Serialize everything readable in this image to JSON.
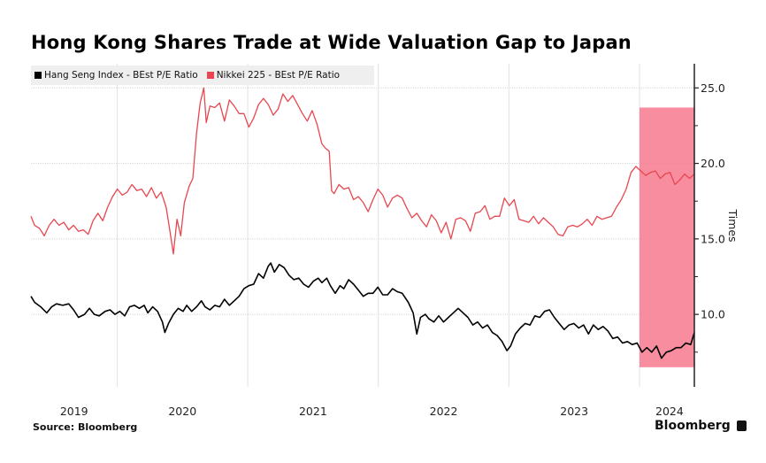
{
  "chart_data": {
    "type": "line",
    "title": "Hong Kong Shares Trade at Wide Valuation Gap to Japan",
    "xlabel": "",
    "ylabel": "Times",
    "ylim": [
      5.2,
      26.6
    ],
    "xlim": [
      2019.34,
      2024.42
    ],
    "y_ticks": [
      {
        "value": 25,
        "label": "25.0"
      },
      {
        "value": 20,
        "label": "20.0"
      },
      {
        "value": 15,
        "label": "15.0"
      },
      {
        "value": 10,
        "label": "10.0"
      }
    ],
    "y_minor_ticks": [
      22.5,
      17.5,
      12.5,
      7.5
    ],
    "x_ticks": [
      {
        "value": 2019.67,
        "label": "2019"
      },
      {
        "value": 2020.5,
        "label": "2020"
      },
      {
        "value": 2021.5,
        "label": "2021"
      },
      {
        "value": 2022.5,
        "label": "2022"
      },
      {
        "value": 2023.5,
        "label": "2023"
      },
      {
        "value": 2024.23,
        "label": "2024"
      }
    ],
    "x_gridlines": [
      2020.0,
      2021.0,
      2022.0,
      2023.0,
      2024.0
    ],
    "grid": true,
    "legend_position": "top-left",
    "highlight": {
      "x_start": 2024.0,
      "x_end": 2024.42,
      "y_start": 6.5,
      "y_end": 23.7,
      "color": "#f7798e"
    },
    "series": [
      {
        "name": "Hang Seng Index - BEst P/E Ratio",
        "color": "#000000",
        "points": [
          [
            2019.34,
            11.2
          ],
          [
            2019.37,
            10.8
          ],
          [
            2019.42,
            10.5
          ],
          [
            2019.47,
            10.1
          ],
          [
            2019.51,
            10.5
          ],
          [
            2019.55,
            10.7
          ],
          [
            2019.6,
            10.6
          ],
          [
            2019.65,
            10.7
          ],
          [
            2019.69,
            10.3
          ],
          [
            2019.73,
            9.8
          ],
          [
            2019.78,
            10.0
          ],
          [
            2019.82,
            10.4
          ],
          [
            2019.86,
            10.0
          ],
          [
            2019.9,
            9.9
          ],
          [
            2019.95,
            10.2
          ],
          [
            2019.99,
            10.3
          ],
          [
            2020.03,
            10.0
          ],
          [
            2020.07,
            10.2
          ],
          [
            2020.11,
            9.9
          ],
          [
            2020.15,
            10.5
          ],
          [
            2020.19,
            10.6
          ],
          [
            2020.23,
            10.4
          ],
          [
            2020.27,
            10.6
          ],
          [
            2020.3,
            10.1
          ],
          [
            2020.34,
            10.5
          ],
          [
            2020.38,
            10.2
          ],
          [
            2020.42,
            9.5
          ],
          [
            2020.44,
            8.8
          ],
          [
            2020.47,
            9.4
          ],
          [
            2020.51,
            10.0
          ],
          [
            2020.55,
            10.4
          ],
          [
            2020.59,
            10.2
          ],
          [
            2020.62,
            10.6
          ],
          [
            2020.66,
            10.2
          ],
          [
            2020.7,
            10.5
          ],
          [
            2020.74,
            10.9
          ],
          [
            2020.77,
            10.5
          ],
          [
            2020.81,
            10.3
          ],
          [
            2020.85,
            10.6
          ],
          [
            2020.89,
            10.5
          ],
          [
            2020.93,
            11.0
          ],
          [
            2020.97,
            10.6
          ],
          [
            2021.01,
            10.9
          ],
          [
            2021.05,
            11.2
          ],
          [
            2021.09,
            11.7
          ],
          [
            2021.13,
            11.9
          ],
          [
            2021.17,
            12.0
          ],
          [
            2021.21,
            12.7
          ],
          [
            2021.25,
            12.4
          ],
          [
            2021.29,
            13.2
          ],
          [
            2021.31,
            13.4
          ],
          [
            2021.34,
            12.8
          ],
          [
            2021.38,
            13.3
          ],
          [
            2021.42,
            13.1
          ],
          [
            2021.46,
            12.6
          ],
          [
            2021.5,
            12.3
          ],
          [
            2021.54,
            12.4
          ],
          [
            2021.58,
            12.0
          ],
          [
            2021.62,
            11.8
          ],
          [
            2021.66,
            12.2
          ],
          [
            2021.7,
            12.4
          ],
          [
            2021.73,
            12.1
          ],
          [
            2021.77,
            12.4
          ],
          [
            2021.8,
            11.9
          ],
          [
            2021.84,
            11.4
          ],
          [
            2021.88,
            11.9
          ],
          [
            2021.91,
            11.7
          ],
          [
            2021.95,
            12.3
          ],
          [
            2021.99,
            12.0
          ],
          [
            2022.03,
            11.6
          ],
          [
            2022.07,
            11.2
          ],
          [
            2022.11,
            11.4
          ],
          [
            2022.15,
            11.4
          ],
          [
            2022.19,
            11.8
          ],
          [
            2022.23,
            11.3
          ],
          [
            2022.27,
            11.3
          ],
          [
            2022.31,
            11.7
          ],
          [
            2022.35,
            11.5
          ],
          [
            2022.39,
            11.4
          ],
          [
            2022.44,
            10.8
          ],
          [
            2022.48,
            10.1
          ],
          [
            2022.51,
            8.7
          ],
          [
            2022.54,
            9.8
          ],
          [
            2022.58,
            10.0
          ],
          [
            2022.61,
            9.7
          ],
          [
            2022.65,
            9.5
          ],
          [
            2022.69,
            9.9
          ],
          [
            2022.73,
            9.5
          ],
          [
            2022.77,
            9.8
          ],
          [
            2022.81,
            10.1
          ],
          [
            2022.85,
            10.4
          ],
          [
            2022.89,
            10.1
          ],
          [
            2022.93,
            9.8
          ],
          [
            2022.97,
            9.3
          ],
          [
            2023.01,
            9.5
          ],
          [
            2023.05,
            9.1
          ],
          [
            2023.09,
            9.3
          ],
          [
            2023.13,
            8.8
          ],
          [
            2023.17,
            8.6
          ],
          [
            2023.21,
            8.2
          ],
          [
            2023.25,
            7.6
          ],
          [
            2023.28,
            7.9
          ],
          [
            2023.32,
            8.7
          ],
          [
            2023.36,
            9.1
          ],
          [
            2023.4,
            9.4
          ],
          [
            2023.44,
            9.3
          ],
          [
            2023.48,
            9.9
          ],
          [
            2023.52,
            9.8
          ],
          [
            2023.56,
            10.2
          ],
          [
            2023.6,
            10.3
          ],
          [
            2023.64,
            9.8
          ],
          [
            2023.68,
            9.4
          ],
          [
            2023.72,
            9.0
          ],
          [
            2023.76,
            9.3
          ],
          [
            2023.8,
            9.4
          ],
          [
            2023.84,
            9.1
          ],
          [
            2023.88,
            9.3
          ],
          [
            2023.92,
            8.7
          ],
          [
            2023.96,
            9.3
          ],
          [
            2024.0,
            9.0
          ],
          [
            2024.04,
            9.2
          ],
          [
            2024.08,
            8.9
          ],
          [
            2024.12,
            8.4
          ],
          [
            2024.16,
            8.5
          ],
          [
            2024.2,
            8.1
          ],
          [
            2024.24,
            8.2
          ],
          [
            2024.28,
            8.0
          ],
          [
            2024.32,
            8.1
          ],
          [
            2024.36,
            7.5
          ],
          [
            2024.4,
            7.8
          ],
          [
            2024.44,
            7.5
          ],
          [
            2024.48,
            7.9
          ],
          [
            2024.52,
            7.1
          ],
          [
            2024.56,
            7.5
          ],
          [
            2024.6,
            7.6
          ],
          [
            2024.64,
            7.8
          ],
          [
            2024.68,
            7.8
          ],
          [
            2024.72,
            8.1
          ],
          [
            2024.76,
            8.0
          ],
          [
            2024.79,
            8.8
          ]
        ]
      },
      {
        "name": "Nikkei 225 - BEst P/E Ratio",
        "color": "#e8474f",
        "points": [
          [
            2019.34,
            16.5
          ],
          [
            2019.37,
            15.9
          ],
          [
            2019.41,
            15.7
          ],
          [
            2019.45,
            15.2
          ],
          [
            2019.49,
            15.9
          ],
          [
            2019.53,
            16.3
          ],
          [
            2019.57,
            15.9
          ],
          [
            2019.61,
            16.1
          ],
          [
            2019.65,
            15.6
          ],
          [
            2019.69,
            15.9
          ],
          [
            2019.73,
            15.5
          ],
          [
            2019.77,
            15.6
          ],
          [
            2019.81,
            15.3
          ],
          [
            2019.85,
            16.2
          ],
          [
            2019.89,
            16.7
          ],
          [
            2019.93,
            16.2
          ],
          [
            2019.97,
            17.1
          ],
          [
            2020.01,
            17.8
          ],
          [
            2020.05,
            18.3
          ],
          [
            2020.09,
            17.9
          ],
          [
            2020.13,
            18.1
          ],
          [
            2020.17,
            18.6
          ],
          [
            2020.21,
            18.2
          ],
          [
            2020.25,
            18.3
          ],
          [
            2020.29,
            17.8
          ],
          [
            2020.33,
            18.4
          ],
          [
            2020.37,
            17.7
          ],
          [
            2020.41,
            18.1
          ],
          [
            2020.45,
            17.1
          ],
          [
            2020.48,
            15.6
          ],
          [
            2020.51,
            14.0
          ],
          [
            2020.54,
            16.3
          ],
          [
            2020.57,
            15.2
          ],
          [
            2020.6,
            17.4
          ],
          [
            2020.64,
            18.5
          ],
          [
            2020.67,
            19.0
          ],
          [
            2020.7,
            22.0
          ],
          [
            2020.73,
            24.0
          ],
          [
            2020.76,
            25.0
          ],
          [
            2020.78,
            22.7
          ],
          [
            2020.81,
            23.8
          ],
          [
            2020.85,
            23.7
          ],
          [
            2020.89,
            24.0
          ],
          [
            2020.93,
            22.8
          ],
          [
            2020.97,
            24.2
          ],
          [
            2021.01,
            23.8
          ],
          [
            2021.05,
            23.3
          ],
          [
            2021.09,
            23.3
          ],
          [
            2021.13,
            22.4
          ],
          [
            2021.17,
            23.0
          ],
          [
            2021.21,
            23.9
          ],
          [
            2021.25,
            24.3
          ],
          [
            2021.29,
            23.9
          ],
          [
            2021.33,
            23.2
          ],
          [
            2021.37,
            23.6
          ],
          [
            2021.41,
            24.6
          ],
          [
            2021.45,
            24.1
          ],
          [
            2021.49,
            24.5
          ],
          [
            2021.53,
            23.9
          ],
          [
            2021.57,
            23.3
          ],
          [
            2021.61,
            22.8
          ],
          [
            2021.65,
            23.5
          ],
          [
            2021.69,
            22.6
          ],
          [
            2021.73,
            21.3
          ],
          [
            2021.76,
            21.0
          ],
          [
            2021.79,
            20.8
          ],
          [
            2021.81,
            18.2
          ],
          [
            2021.83,
            18.0
          ],
          [
            2021.87,
            18.6
          ],
          [
            2021.91,
            18.3
          ],
          [
            2021.95,
            18.4
          ],
          [
            2021.99,
            17.6
          ],
          [
            2022.03,
            17.8
          ],
          [
            2022.07,
            17.4
          ],
          [
            2022.11,
            16.8
          ],
          [
            2022.15,
            17.6
          ],
          [
            2022.19,
            18.3
          ],
          [
            2022.23,
            17.9
          ],
          [
            2022.27,
            17.1
          ],
          [
            2022.31,
            17.7
          ],
          [
            2022.35,
            17.9
          ],
          [
            2022.39,
            17.7
          ],
          [
            2022.43,
            17.0
          ],
          [
            2022.47,
            16.4
          ],
          [
            2022.51,
            16.7
          ],
          [
            2022.55,
            16.2
          ],
          [
            2022.59,
            15.8
          ],
          [
            2022.63,
            16.6
          ],
          [
            2022.67,
            16.2
          ],
          [
            2022.71,
            15.4
          ],
          [
            2022.75,
            16.1
          ],
          [
            2022.79,
            15.0
          ],
          [
            2022.83,
            16.3
          ],
          [
            2022.87,
            16.4
          ],
          [
            2022.91,
            16.2
          ],
          [
            2022.95,
            15.5
          ],
          [
            2022.99,
            16.7
          ],
          [
            2023.03,
            16.8
          ],
          [
            2023.07,
            17.2
          ],
          [
            2023.11,
            16.3
          ],
          [
            2023.15,
            16.5
          ],
          [
            2023.19,
            16.5
          ],
          [
            2023.23,
            17.7
          ],
          [
            2023.27,
            17.2
          ],
          [
            2023.31,
            17.6
          ],
          [
            2023.35,
            16.3
          ],
          [
            2023.39,
            16.2
          ],
          [
            2023.43,
            16.1
          ],
          [
            2023.47,
            16.5
          ],
          [
            2023.51,
            16.0
          ],
          [
            2023.55,
            16.4
          ],
          [
            2023.59,
            16.1
          ],
          [
            2023.63,
            15.8
          ],
          [
            2023.67,
            15.3
          ],
          [
            2023.71,
            15.2
          ],
          [
            2023.75,
            15.8
          ],
          [
            2023.79,
            15.9
          ],
          [
            2023.83,
            15.8
          ],
          [
            2023.87,
            16.0
          ],
          [
            2023.91,
            16.3
          ],
          [
            2023.95,
            15.9
          ],
          [
            2023.99,
            16.5
          ],
          [
            2024.03,
            16.3
          ],
          [
            2024.07,
            16.4
          ],
          [
            2024.11,
            16.5
          ],
          [
            2024.15,
            17.1
          ],
          [
            2024.19,
            17.6
          ],
          [
            2024.23,
            18.3
          ],
          [
            2024.27,
            19.4
          ],
          [
            2024.31,
            19.8
          ],
          [
            2024.35,
            19.5
          ],
          [
            2024.39,
            19.2
          ],
          [
            2024.43,
            19.4
          ],
          [
            2024.47,
            19.5
          ],
          [
            2024.51,
            19.0
          ],
          [
            2024.55,
            19.3
          ],
          [
            2024.59,
            19.4
          ],
          [
            2024.63,
            18.6
          ],
          [
            2024.67,
            18.9
          ],
          [
            2024.71,
            19.3
          ],
          [
            2024.75,
            19.0
          ],
          [
            2024.79,
            19.3
          ]
        ]
      }
    ]
  },
  "legend": {
    "items": [
      {
        "label": "Hang Seng Index - BEst P/E Ratio",
        "color": "#000000"
      },
      {
        "label": "Nikkei 225 - BEst P/E Ratio",
        "color": "#e8474f"
      }
    ]
  },
  "footer": {
    "source": "Source: Bloomberg",
    "brand": "Bloomberg"
  }
}
